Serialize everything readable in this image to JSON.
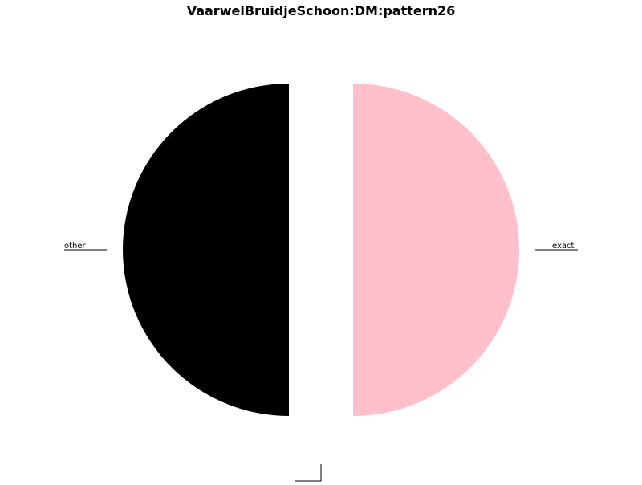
{
  "chart_data": {
    "type": "pie",
    "title": "VaarwelBruidjeSchoon:DM:pattern26",
    "slices": [
      {
        "label": "other",
        "value": 50,
        "color": "#000000"
      },
      {
        "label": "",
        "value": 0,
        "color": "#ffffff"
      },
      {
        "label": "exact",
        "value": 50,
        "color": "#ffc0cb"
      }
    ],
    "exploded": true,
    "legend": "none"
  }
}
